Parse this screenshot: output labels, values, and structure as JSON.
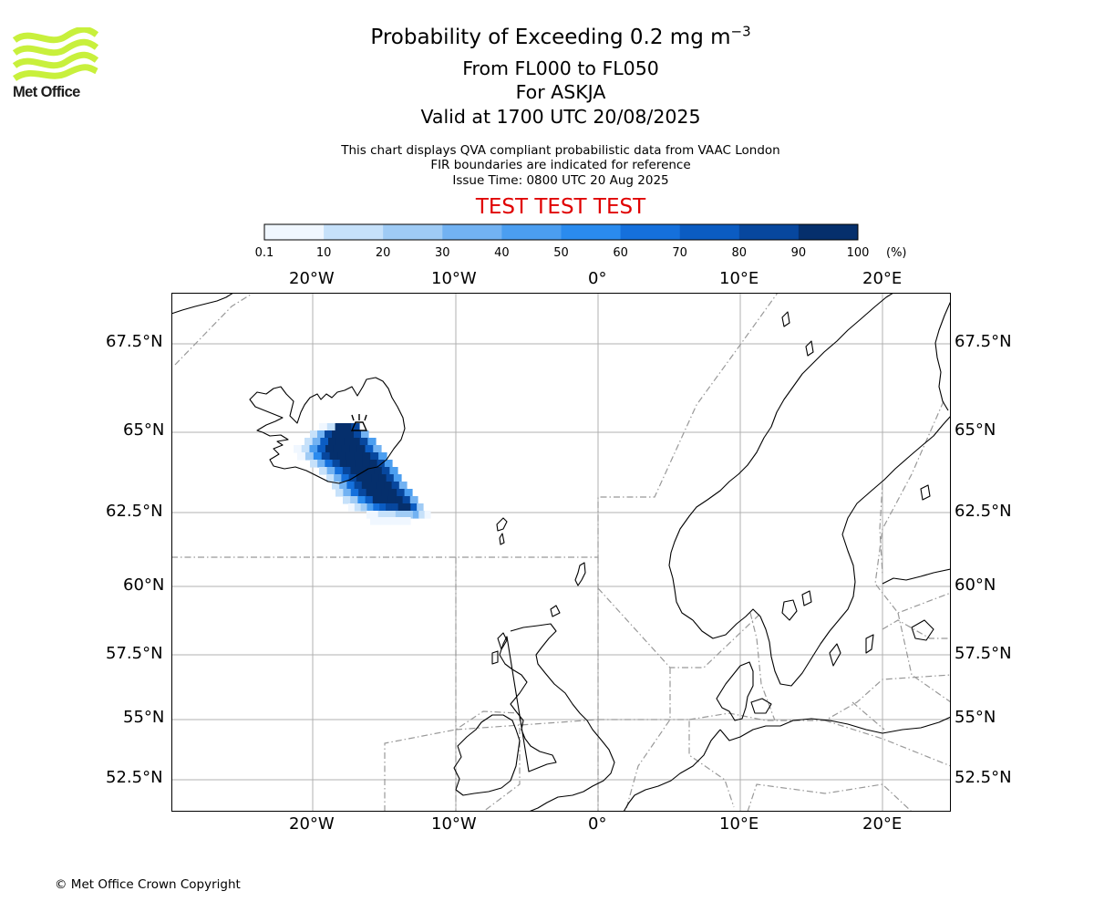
{
  "header": {
    "title_prefix": "Probability of Exceeding 0.2 mg m",
    "title_exponent": "−3",
    "levels": "From FL000 to FL050",
    "volcano": "For ASKJA",
    "valid": "Valid at 1700 UTC 20/08/2025",
    "note_1": "This chart displays QVA compliant probabilistic data from VAAC London",
    "note_2": "FIR boundaries are indicated for reference",
    "issue_time": "Issue Time: 0800 UTC 20 Aug 2025",
    "banner": "TEST TEST TEST",
    "banner_color": "#e00000"
  },
  "logo": {
    "text": "Met Office",
    "icon": "met-office-wave-logo",
    "color": "#c8f03c"
  },
  "colorbar": {
    "tick_labels": [
      "0.1",
      "10",
      "20",
      "30",
      "40",
      "50",
      "60",
      "70",
      "80",
      "90",
      "100"
    ],
    "unit": "(%)",
    "colors": [
      "#f0f7ff",
      "#c6e1fa",
      "#9fcbf5",
      "#72b2f2",
      "#4b9ef0",
      "#2a8bee",
      "#1570dc",
      "#0b5cc2",
      "#07479e",
      "#052f6c"
    ]
  },
  "map": {
    "lon_labels": [
      "20°W",
      "10°W",
      "0°",
      "10°E",
      "20°E"
    ],
    "lat_labels": [
      "67.5°N",
      "65°N",
      "62.5°N",
      "60°N",
      "57.5°N",
      "55°N",
      "52.5°N"
    ],
    "volcano_icon": "volcano-icon"
  },
  "footer": {
    "copyright": "© Met Office Crown Copyright"
  }
}
